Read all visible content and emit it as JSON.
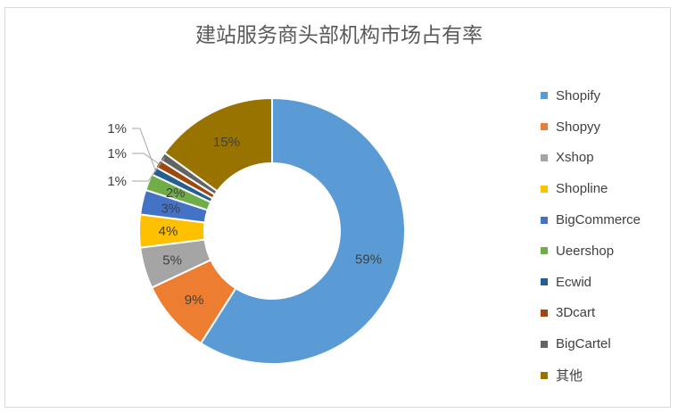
{
  "chart_data": {
    "type": "pie",
    "variant": "donut",
    "title": "建站服务商头部机构市场占有率",
    "legend_position": "right",
    "slices": [
      {
        "name": "Shopify",
        "value": 59,
        "label": "59%",
        "color": "#5b9bd5"
      },
      {
        "name": "Shopyy",
        "value": 9,
        "label": "9%",
        "color": "#ed7d31"
      },
      {
        "name": "Xshop",
        "value": 5,
        "label": "5%",
        "color": "#a5a5a5"
      },
      {
        "name": "Shopline",
        "value": 4,
        "label": "4%",
        "color": "#ffc000"
      },
      {
        "name": "BigCommerce",
        "value": 3,
        "label": "3%",
        "color": "#4472c4"
      },
      {
        "name": "Ueershop",
        "value": 2,
        "label": "2%",
        "color": "#70ad47"
      },
      {
        "name": "Ecwid",
        "value": 1,
        "label": "1%",
        "color": "#255e91"
      },
      {
        "name": "3Dcart",
        "value": 1,
        "label": "1%",
        "color": "#9e480e"
      },
      {
        "name": "BigCartel",
        "value": 1,
        "label": "1%",
        "color": "#636363"
      },
      {
        "name": "其他",
        "value": 15,
        "label": "15%",
        "color": "#997300"
      }
    ]
  }
}
